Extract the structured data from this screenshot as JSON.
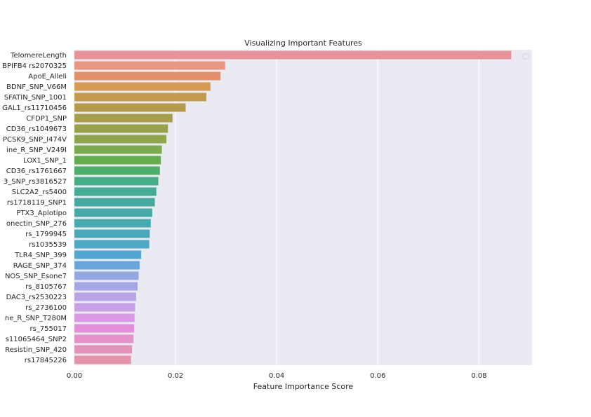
{
  "chart_data": {
    "type": "bar",
    "orientation": "horizontal",
    "title": "Visualizing Important Features",
    "xlabel": "Feature Importance Score",
    "ylabel": "",
    "xlim": [
      0,
      0.0905
    ],
    "xticks": [
      0.0,
      0.02,
      0.04,
      0.06,
      0.08
    ],
    "xtick_labels": [
      "0.00",
      "0.02",
      "0.04",
      "0.06",
      "0.08"
    ],
    "grid": true,
    "legend": "top-right (empty)",
    "categories": [
      "TelomereLength",
      "BPIFB4 rs2070325",
      "ApoE_Alleli",
      "BDNF_SNP_V66M",
      "SFATIN_SNP_1001",
      "GAL1_rs11710456",
      "CFDP1_SNP",
      "CD36_rs1049673",
      "PCSK9_SNP_I474V",
      "ine_R_SNP_V249I",
      "LOX1_SNP_1",
      "CD36_rs1761667",
      "3_SNP_rs3816527",
      "SLC2A2_rs5400",
      "rs1718119_SNP1",
      "PTX3_Aplotipo",
      "onectin_SNP_276",
      "rs_1799945",
      "rs1035539",
      "TLR4_SNP_399",
      "RAGE_SNP_374",
      "NOS_SNP_Esone7",
      "rs_8105767",
      "DAC3_rs2530223",
      "rs_2736100",
      "ne_R_SNP_T280M",
      "rs_755017",
      "s11065464_SNP2",
      "Resistin_SNP_420",
      "rs17845226"
    ],
    "values": [
      0.0864,
      0.0298,
      0.0289,
      0.0269,
      0.0261,
      0.022,
      0.0194,
      0.0185,
      0.0182,
      0.0173,
      0.0171,
      0.0169,
      0.0166,
      0.0162,
      0.0159,
      0.0154,
      0.0151,
      0.0149,
      0.0148,
      0.0132,
      0.0129,
      0.0127,
      0.0125,
      0.0122,
      0.012,
      0.0119,
      0.0118,
      0.0117,
      0.0114,
      0.0112
    ],
    "colors": [
      "#e8929a",
      "#e8967f",
      "#e3916b",
      "#d79a52",
      "#c69a4e",
      "#b69a4b",
      "#a79e4b",
      "#999f4a",
      "#8ea64a",
      "#7bab4c",
      "#63ad4e",
      "#4cae68",
      "#46ae84",
      "#45ac94",
      "#44aa9f",
      "#45aaa6",
      "#47aab0",
      "#4aa9b9",
      "#4ca8c4",
      "#52a6d1",
      "#6aa5dc",
      "#94a6e3",
      "#a6a7e6",
      "#b7a3e6",
      "#c8a0e6",
      "#dc98e3",
      "#e490d8",
      "#e590c8",
      "#e392ba",
      "#e593aa"
    ]
  }
}
